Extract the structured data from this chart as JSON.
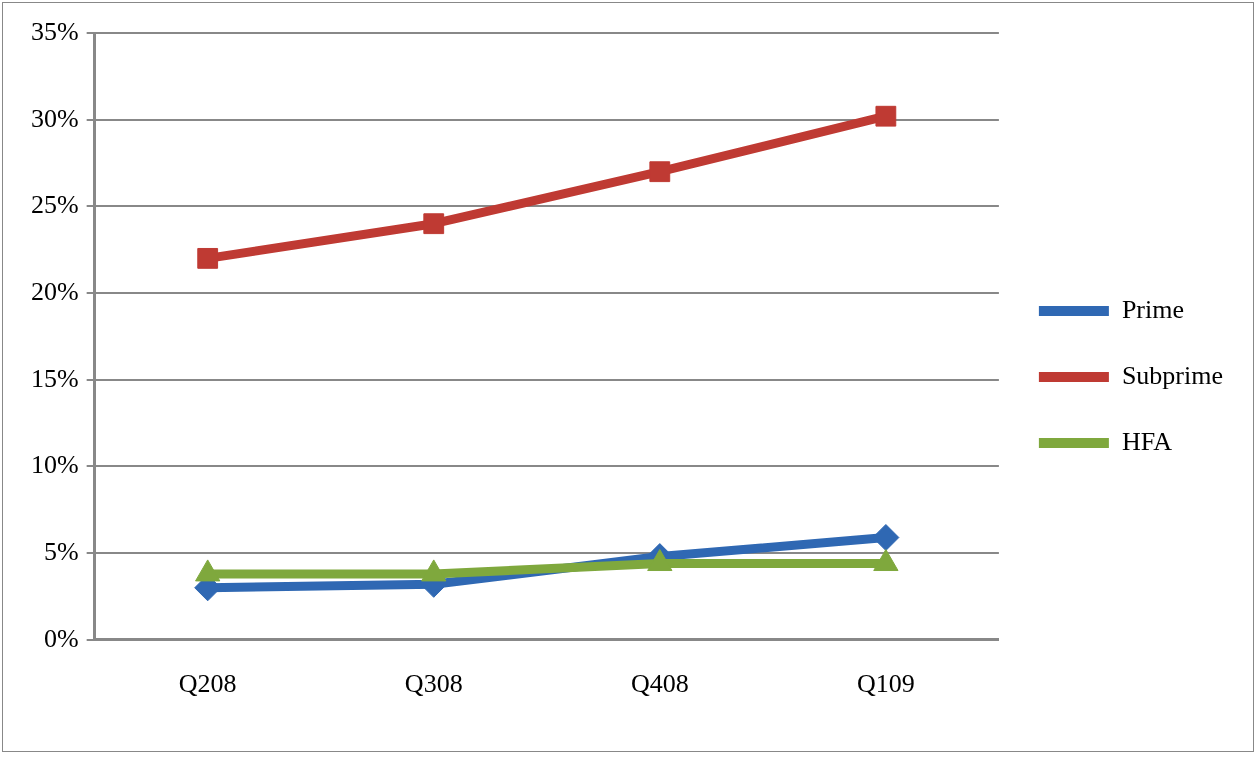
{
  "chart_data": {
    "type": "line",
    "categories": [
      "Q208",
      "Q308",
      "Q408",
      "Q109"
    ],
    "series": [
      {
        "name": "Prime",
        "color": "#2f68b3",
        "marker": "diamond",
        "values": [
          3.0,
          3.2,
          4.8,
          5.9
        ]
      },
      {
        "name": "Subprime",
        "color": "#bf3a33",
        "marker": "square",
        "values": [
          22.0,
          24.0,
          27.0,
          30.2
        ]
      },
      {
        "name": "HFA",
        "color": "#7fa83d",
        "marker": "triangle",
        "values": [
          3.8,
          3.8,
          4.4,
          4.4
        ]
      }
    ],
    "ylim": [
      0,
      35
    ],
    "yticks": [
      {
        "value": 0,
        "label": "0%"
      },
      {
        "value": 5,
        "label": "5%"
      },
      {
        "value": 10,
        "label": "10%"
      },
      {
        "value": 15,
        "label": "15%"
      },
      {
        "value": 20,
        "label": "20%"
      },
      {
        "value": 25,
        "label": "25%"
      },
      {
        "value": 30,
        "label": "30%"
      },
      {
        "value": 35,
        "label": "35%"
      }
    ],
    "grid": "y",
    "legend": "right"
  }
}
